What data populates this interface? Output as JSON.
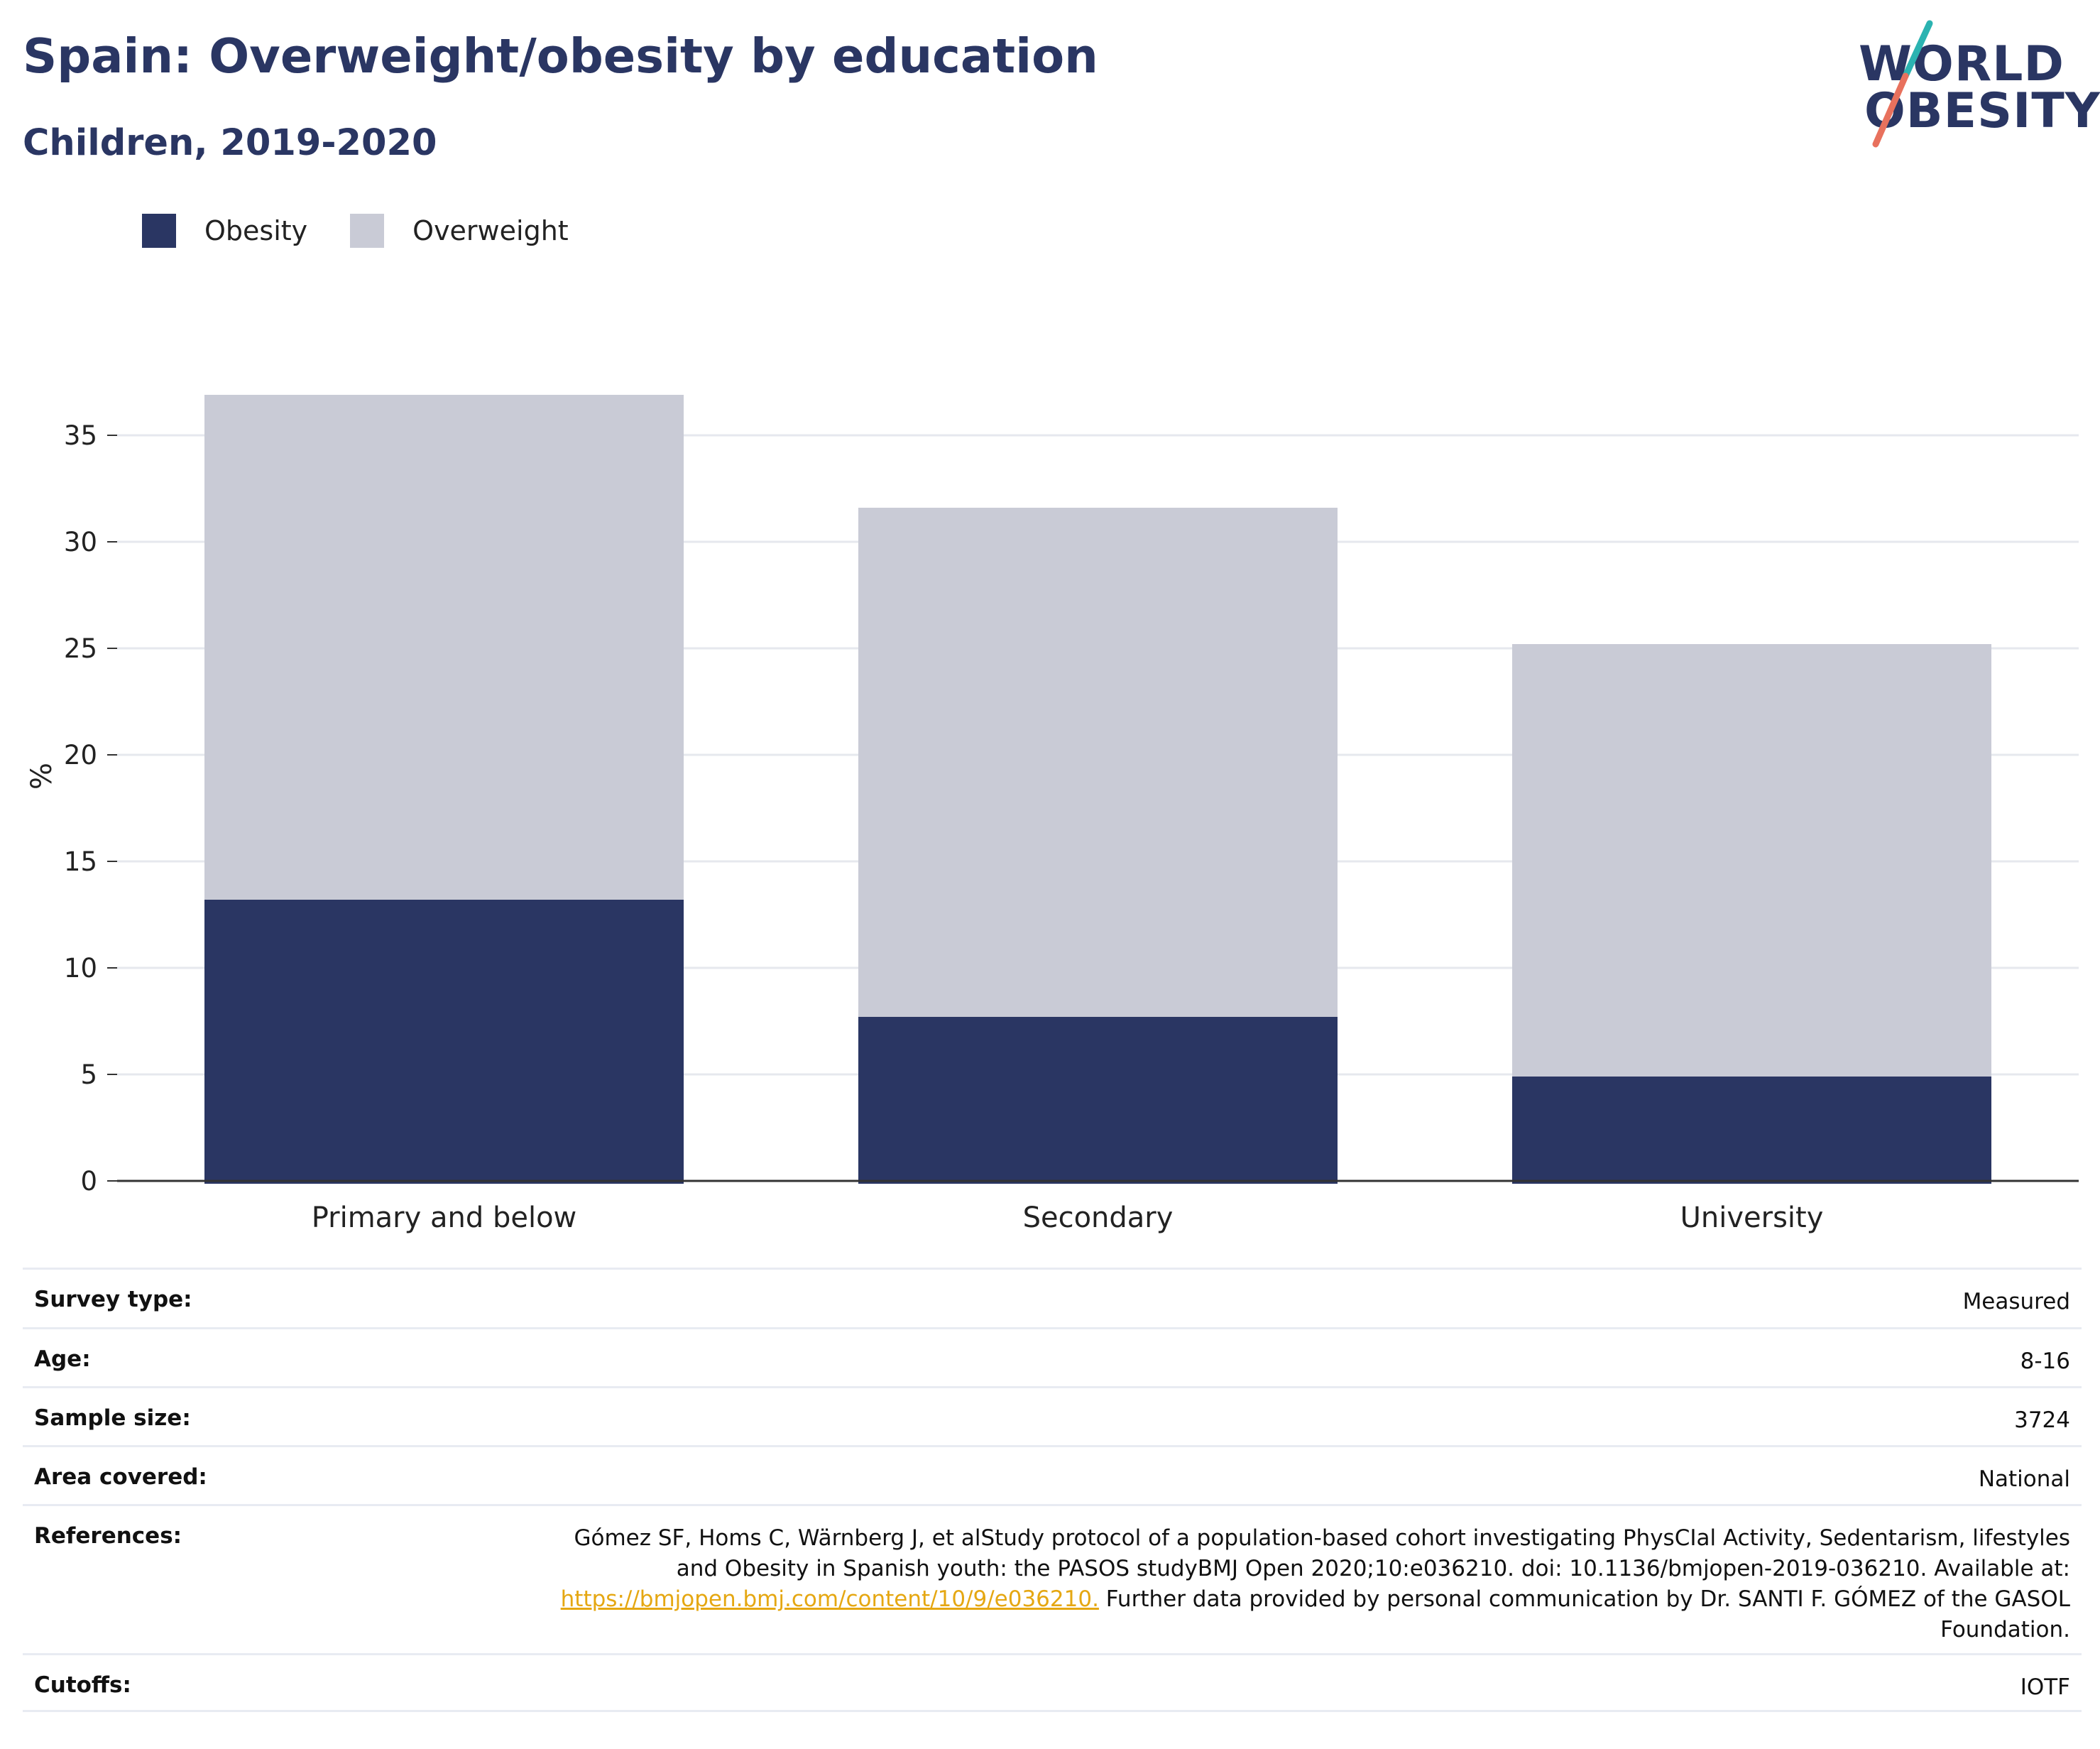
{
  "header": {
    "title": "Spain: Overweight/obesity by education",
    "subtitle": "Children, 2019-2020"
  },
  "logo": {
    "line1": "WORLD",
    "line2": "OBESITY"
  },
  "colors": {
    "obesity": "#2a3663",
    "overweight": "#c9cbd6",
    "gridline": "#e6e8ee",
    "axis": "#333333",
    "link": "#e5a712",
    "logo_teal": "#2bb3b1",
    "logo_coral": "#e8715d"
  },
  "legend": [
    {
      "name": "Obesity",
      "color": "#2a3663"
    },
    {
      "name": "Overweight",
      "color": "#c9cbd6"
    }
  ],
  "chart_data": {
    "type": "bar",
    "stacked": true,
    "categories": [
      "Primary and below",
      "Secondary",
      "University"
    ],
    "series": [
      {
        "name": "Obesity",
        "values": [
          13.2,
          7.7,
          4.9
        ]
      },
      {
        "name": "Overweight",
        "values": [
          23.7,
          23.9,
          20.3
        ]
      }
    ],
    "totals": [
      36.9,
      31.6,
      25.2
    ],
    "ylabel": "%",
    "yticks": [
      0,
      5,
      10,
      15,
      20,
      25,
      30,
      35
    ],
    "ylim": [
      0,
      38
    ],
    "grid": true,
    "legend_position": "top-left"
  },
  "metadata": [
    {
      "key": "Survey type:",
      "value": "Measured"
    },
    {
      "key": "Age:",
      "value": "8-16"
    },
    {
      "key": "Sample size:",
      "value": "3724"
    },
    {
      "key": "Area covered:",
      "value": "National"
    },
    {
      "key": "References:",
      "value_before": "Gómez SF, Homs C, Wärnberg J, et alStudy protocol of a population-based cohort investigating PhysCIal Activity, Sedentarism, lifestyles and Obesity in Spanish youth: the PASOS studyBMJ Open 2020;10:e036210. doi: 10.1136/bmjopen-2019-036210. Available at: ",
      "link": "https://bmjopen.bmj.com/content/10/9/e036210.",
      "value_after": " Further data provided by personal communication by Dr. SANTI F. GÓMEZ of the GASOL Foundation."
    },
    {
      "key": "Cutoffs:",
      "value": "IOTF"
    }
  ]
}
